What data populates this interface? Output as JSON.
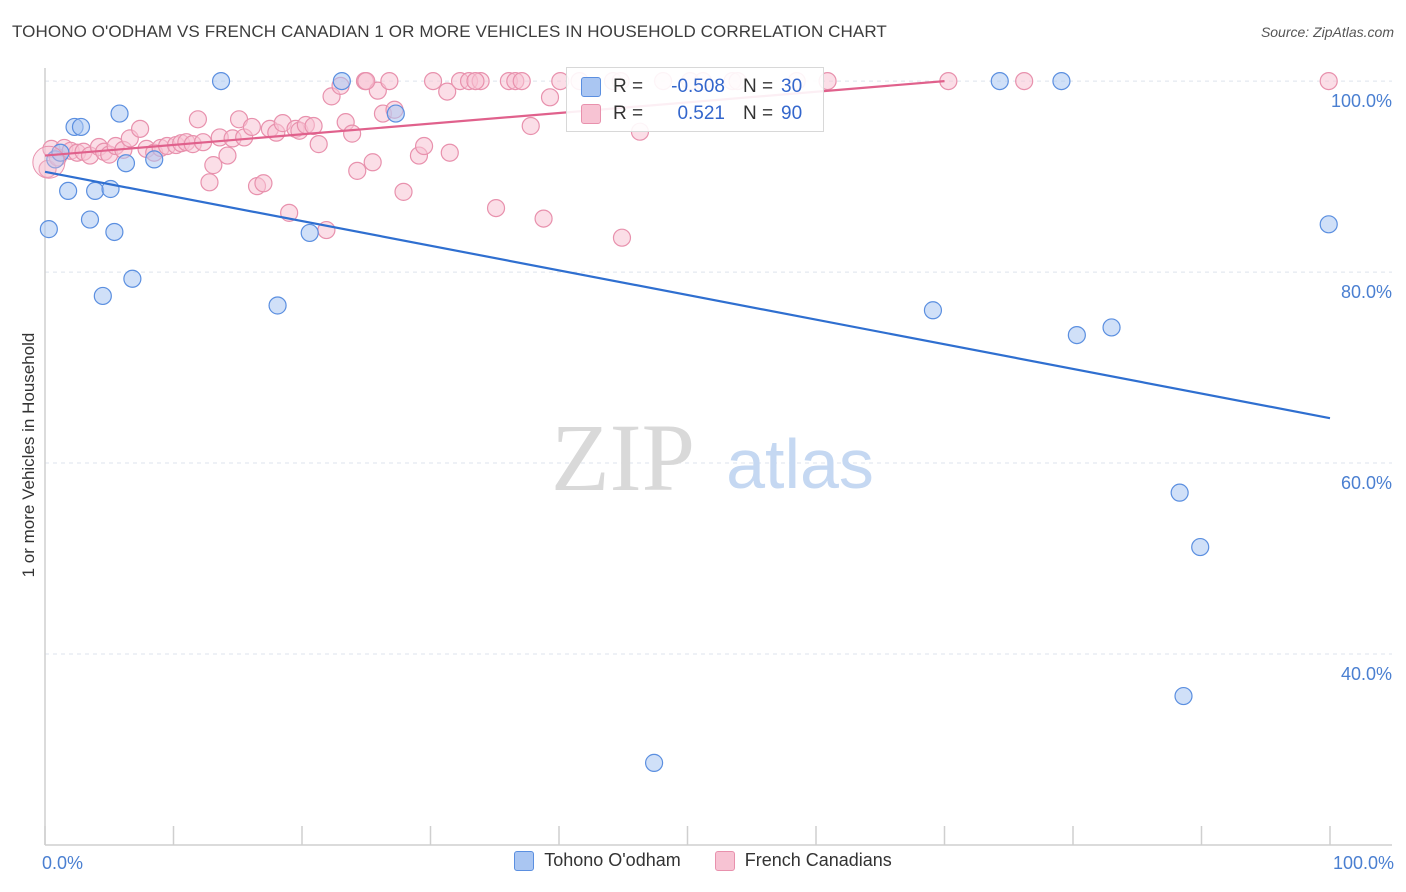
{
  "title": "TOHONO O'ODHAM VS FRENCH CANADIAN 1 OR MORE VEHICLES IN HOUSEHOLD CORRELATION CHART",
  "source": "Source: ZipAtlas.com",
  "watermark": {
    "zip": "ZIP",
    "atlas": "atlas"
  },
  "colors": {
    "blue": "#5b8fe0",
    "blue_fill": "#aac6f2",
    "blue_line": "#2f6fd0",
    "pink": "#e891ad",
    "pink_fill": "#f7c3d3",
    "pink_line": "#e0618c",
    "tick_text": "#4a7fd1",
    "grid": "#dde3ec"
  },
  "stats": [
    {
      "r_label": "R =",
      "r_value": "-0.508",
      "n_label": "N =",
      "n_value": "30"
    },
    {
      "r_label": "R =",
      "r_value": "0.521",
      "n_label": "N =",
      "n_value": "90"
    }
  ],
  "chart_data": {
    "type": "scatter",
    "title": "TOHONO O'ODHAM VS FRENCH CANADIAN 1 OR MORE VEHICLES IN HOUSEHOLD CORRELATION CHART",
    "xlabel": "",
    "ylabel": "1 or more Vehicles in Household",
    "xlim": [
      0,
      100
    ],
    "ylim": [
      20,
      102
    ],
    "x_tick_labels": [
      "0.0%",
      "100.0%"
    ],
    "y_ticks": [
      {
        "value": 100,
        "label": "100.0%"
      },
      {
        "value": 80,
        "label": "80.0%"
      },
      {
        "value": 60,
        "label": "60.0%"
      },
      {
        "value": 40,
        "label": "40.0%"
      }
    ],
    "grid": true,
    "series": [
      {
        "name": "Tohono O'odham",
        "color": "blue",
        "trend": {
          "x": [
            0,
            100
          ],
          "y": [
            90.5,
            64.7
          ]
        },
        "points": [
          [
            0.3,
            84.5
          ],
          [
            0.8,
            91.8
          ],
          [
            1.2,
            92.5
          ],
          [
            1.8,
            88.5
          ],
          [
            2.3,
            95.2
          ],
          [
            2.8,
            95.2
          ],
          [
            3.5,
            85.5
          ],
          [
            3.9,
            88.5
          ],
          [
            4.5,
            77.5
          ],
          [
            5.1,
            88.7
          ],
          [
            5.4,
            84.2
          ],
          [
            5.8,
            96.6
          ],
          [
            6.3,
            91.4
          ],
          [
            6.8,
            79.3
          ],
          [
            8.5,
            91.8
          ],
          [
            13.7,
            100
          ],
          [
            18.1,
            76.5
          ],
          [
            20.6,
            84.1
          ],
          [
            23.1,
            100
          ],
          [
            27.3,
            96.6
          ],
          [
            69.1,
            76.0
          ],
          [
            74.3,
            100
          ],
          [
            79.1,
            100
          ],
          [
            80.3,
            73.4
          ],
          [
            83.0,
            74.2
          ],
          [
            88.3,
            56.9
          ],
          [
            89.9,
            51.2
          ],
          [
            88.6,
            35.6
          ],
          [
            47.4,
            28.6
          ],
          [
            99.9,
            85.0
          ]
        ]
      },
      {
        "name": "French Canadians",
        "color": "pink",
        "trend": {
          "x": [
            0,
            70
          ],
          "y": [
            92.2,
            100
          ]
        },
        "points": [
          [
            0.2,
            90.8
          ],
          [
            0.5,
            92.9
          ],
          [
            1.0,
            92.0
          ],
          [
            1.5,
            93.0
          ],
          [
            2.0,
            92.7
          ],
          [
            2.5,
            92.5
          ],
          [
            3.0,
            92.6
          ],
          [
            3.5,
            92.2
          ],
          [
            4.2,
            93.1
          ],
          [
            4.6,
            92.6
          ],
          [
            5.0,
            92.3
          ],
          [
            5.5,
            93.2
          ],
          [
            6.1,
            92.8
          ],
          [
            6.6,
            94.0
          ],
          [
            7.4,
            95.0
          ],
          [
            7.9,
            92.9
          ],
          [
            8.5,
            92.5
          ],
          [
            9.0,
            93.0
          ],
          [
            9.5,
            93.2
          ],
          [
            10.2,
            93.3
          ],
          [
            10.6,
            93.5
          ],
          [
            11.0,
            93.6
          ],
          [
            11.5,
            93.4
          ],
          [
            11.9,
            96.0
          ],
          [
            12.3,
            93.6
          ],
          [
            12.8,
            89.4
          ],
          [
            13.1,
            91.2
          ],
          [
            13.6,
            94.1
          ],
          [
            14.2,
            92.2
          ],
          [
            14.6,
            94.0
          ],
          [
            15.1,
            96.0
          ],
          [
            15.5,
            94.1
          ],
          [
            16.1,
            95.2
          ],
          [
            16.5,
            89.0
          ],
          [
            17.0,
            89.3
          ],
          [
            17.5,
            95.0
          ],
          [
            18.0,
            94.6
          ],
          [
            18.5,
            95.6
          ],
          [
            19.0,
            86.2
          ],
          [
            19.5,
            95.0
          ],
          [
            19.8,
            94.8
          ],
          [
            20.3,
            95.4
          ],
          [
            20.9,
            95.3
          ],
          [
            21.3,
            93.4
          ],
          [
            21.9,
            84.4
          ],
          [
            22.3,
            98.4
          ],
          [
            23.0,
            99.5
          ],
          [
            23.4,
            95.7
          ],
          [
            23.9,
            94.5
          ],
          [
            24.3,
            90.6
          ],
          [
            24.9,
            100
          ],
          [
            25.5,
            91.5
          ],
          [
            25.9,
            99.0
          ],
          [
            26.3,
            96.6
          ],
          [
            26.8,
            100
          ],
          [
            27.2,
            97.0
          ],
          [
            27.9,
            88.4
          ],
          [
            29.1,
            92.2
          ],
          [
            29.5,
            93.2
          ],
          [
            30.2,
            100
          ],
          [
            31.3,
            98.9
          ],
          [
            31.5,
            92.5
          ],
          [
            32.3,
            100
          ],
          [
            33.0,
            100
          ],
          [
            33.9,
            100
          ],
          [
            35.1,
            86.7
          ],
          [
            36.1,
            100
          ],
          [
            36.6,
            100
          ],
          [
            37.1,
            100
          ],
          [
            37.8,
            95.3
          ],
          [
            38.8,
            85.6
          ],
          [
            39.3,
            98.3
          ],
          [
            40.1,
            100
          ],
          [
            41.6,
            100
          ],
          [
            44.2,
            100
          ],
          [
            44.8,
            100
          ],
          [
            44.9,
            83.6
          ],
          [
            46.3,
            94.7
          ],
          [
            48.1,
            100
          ],
          [
            50.2,
            100
          ],
          [
            51.2,
            100
          ],
          [
            53.5,
            100
          ],
          [
            53.9,
            100
          ],
          [
            58.5,
            100
          ],
          [
            60.9,
            100
          ],
          [
            70.3,
            100
          ],
          [
            76.2,
            100
          ],
          [
            99.9,
            100
          ],
          [
            25.0,
            100
          ],
          [
            33.5,
            100
          ]
        ]
      }
    ]
  }
}
